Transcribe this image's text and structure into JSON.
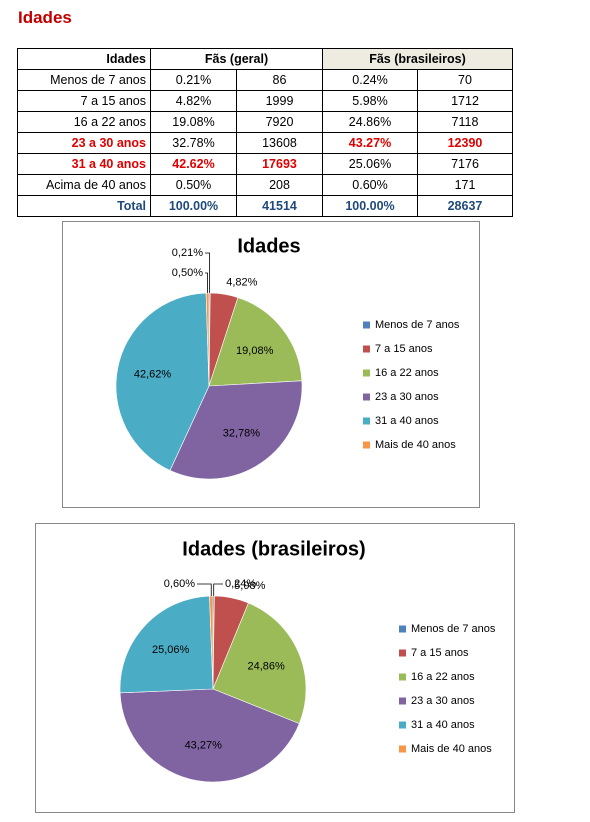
{
  "header": {
    "title": "Idades"
  },
  "table": {
    "header": [
      "Idades",
      "Fãs (geral)",
      "Fãs (brasileiros)"
    ],
    "rows": [
      [
        "Menos de 7 anos",
        "0.21%",
        "86",
        "0.24%",
        "70"
      ],
      [
        "7 a 15 anos",
        "4.82%",
        "1999",
        "5.98%",
        "1712"
      ],
      [
        "16 a 22 anos",
        "19.08%",
        "7920",
        "24.86%",
        "7118"
      ],
      [
        "23 a 30 anos",
        "32.78%",
        "13608",
        "43.27%",
        "12390"
      ],
      [
        "31 a 40 anos",
        "42.62%",
        "17693",
        "25.06%",
        "7176"
      ],
      [
        "Acima de 40 anos",
        "0.50%",
        "208",
        "0.60%",
        "171"
      ],
      [
        "Total",
        "100.00%",
        "41514",
        "100.00%",
        "28637"
      ]
    ]
  },
  "chart_data": [
    {
      "type": "pie",
      "title": "Idades",
      "categories": [
        "Menos de 7 anos",
        "7 a 15 anos",
        "16 a 22 anos",
        "23 a 30 anos",
        "31 a 40 anos",
        "Mais de 40 anos"
      ],
      "values": [
        0.21,
        4.82,
        19.08,
        32.78,
        42.62,
        0.5
      ],
      "value_labels": [
        "0,21%",
        "4,82%",
        "19,08%",
        "32,78%",
        "42,62%",
        "0,50%"
      ],
      "colors": [
        "#4f81bd",
        "#c0504d",
        "#9bbb59",
        "#8064a2",
        "#4bacc6",
        "#f79646"
      ],
      "legend": "right"
    },
    {
      "type": "pie",
      "title": "Idades (brasileiros)",
      "categories": [
        "Menos de 7 anos",
        "7 a 15 anos",
        "16 a 22 anos",
        "23 a 30 anos",
        "31 a 40 anos",
        "Mais de 40 anos"
      ],
      "values": [
        0.24,
        5.98,
        24.86,
        43.27,
        25.06,
        0.6
      ],
      "value_labels": [
        "0,24%",
        "5,98%",
        "24,86%",
        "43,27%",
        "25,06%",
        "0,60%"
      ],
      "colors": [
        "#4f81bd",
        "#c0504d",
        "#9bbb59",
        "#8064a2",
        "#4bacc6",
        "#f79646"
      ],
      "legend": "right"
    }
  ]
}
